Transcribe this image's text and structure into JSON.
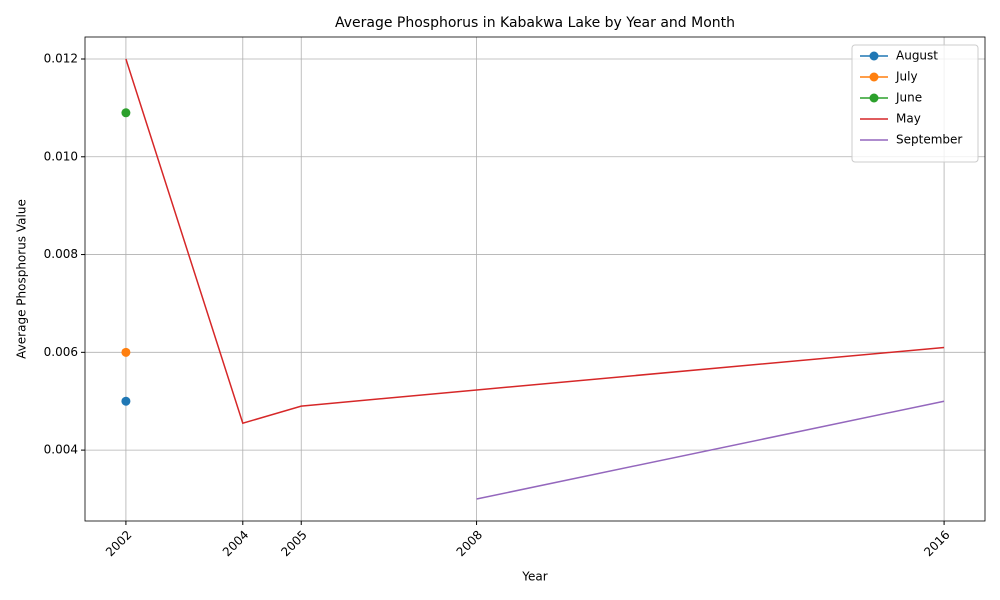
{
  "chart_data": {
    "type": "line",
    "title": "Average Phosphorus in Kabakwa Lake by Year and Month",
    "x_label": "Year",
    "y_label": "Average Phosphorus Value",
    "xlim": [
      2001.3,
      2016.7
    ],
    "xticks": [
      2002,
      2004,
      2005,
      2008,
      2016
    ],
    "ylim": [
      0.00255,
      0.01245
    ],
    "yticks": [
      0.004,
      0.006,
      0.008,
      {
        "value": 0.01,
        "label": "0.010"
      },
      0.012
    ],
    "grid": true,
    "legend": "upper right",
    "series": [
      {
        "name": "August",
        "color": "#1f77b4",
        "marker": true,
        "x": [
          2002
        ],
        "values": [
          0.005
        ]
      },
      {
        "name": "July",
        "color": "#ff7f0e",
        "marker": true,
        "x": [
          2002
        ],
        "values": [
          0.006
        ]
      },
      {
        "name": "June",
        "color": "#2ca02c",
        "marker": true,
        "x": [
          2002
        ],
        "values": [
          0.0109
        ]
      },
      {
        "name": "May",
        "color": "#d62728",
        "marker": false,
        "x": [
          2002,
          2004,
          2005,
          2008,
          2016
        ],
        "values": [
          0.012,
          0.00455,
          0.0049,
          0.00523,
          0.0061
        ]
      },
      {
        "name": "September",
        "color": "#9467bd",
        "marker": false,
        "x": [
          2008,
          2016
        ],
        "values": [
          0.003,
          0.005
        ]
      }
    ]
  }
}
